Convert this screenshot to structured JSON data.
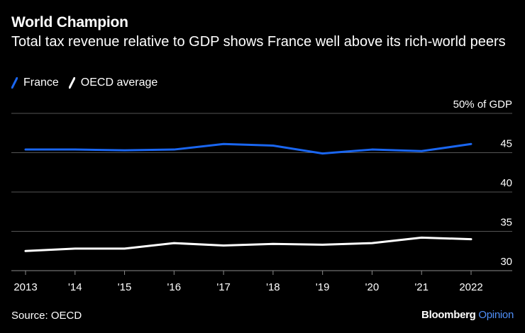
{
  "title": "World Champion",
  "subtitle": "Total tax revenue relative to GDP shows France well above its rich-world peers",
  "source": "Source: OECD",
  "brand": {
    "name": "Bloomberg",
    "section": "Opinion"
  },
  "colors": {
    "france": "#1a66f0",
    "oecd": "#ffffff",
    "grid": "#555555",
    "brand_accent": "#4f8ef7"
  },
  "chart_data": {
    "type": "line",
    "title": "World Champion",
    "x": [
      2013,
      2014,
      2015,
      2016,
      2017,
      2018,
      2019,
      2020,
      2021,
      2022
    ],
    "x_tick_labels": [
      "2013",
      "'14",
      "'15",
      "'16",
      "'17",
      "'18",
      "'19",
      "'20",
      "'21",
      "2022"
    ],
    "series": [
      {
        "name": "France",
        "values": [
          45.4,
          45.4,
          45.3,
          45.4,
          46.1,
          45.9,
          44.9,
          45.4,
          45.2,
          46.1
        ]
      },
      {
        "name": "OECD average",
        "values": [
          32.5,
          32.8,
          32.8,
          33.5,
          33.2,
          33.4,
          33.3,
          33.5,
          34.2,
          34.0
        ]
      }
    ],
    "y_ticks": [
      30,
      35,
      40,
      45,
      50
    ],
    "y_tick_labels": [
      "30",
      "35",
      "40",
      "45",
      "50% of GDP"
    ],
    "ylim": [
      30,
      50
    ],
    "xlabel": "",
    "ylabel": "% of GDP",
    "legend_position": "top-left",
    "grid": true
  }
}
